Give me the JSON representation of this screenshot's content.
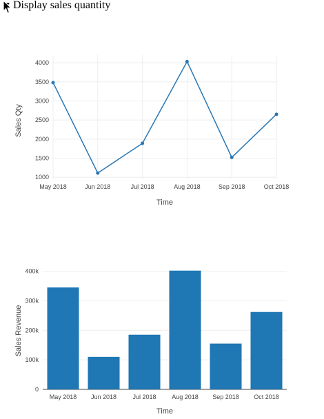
{
  "disclosure": {
    "label": "Display sales quantity"
  },
  "chart_data": [
    {
      "type": "line",
      "categories": [
        "May 2018",
        "Jun 2018",
        "Jul 2018",
        "Aug 2018",
        "Sep 2018",
        "Oct 2018"
      ],
      "values": [
        3480,
        1110,
        1890,
        4030,
        1520,
        2650
      ],
      "xlabel": "Time",
      "ylabel": "Sales Qty",
      "ylim": [
        950,
        4200
      ],
      "yticks": [
        1000,
        1500,
        2000,
        2500,
        3000,
        3500,
        4000
      ],
      "ytick_labels": [
        "1000",
        "1500",
        "2000",
        "2500",
        "3000",
        "3500",
        "4000"
      ],
      "grid": true,
      "color": "#2a77b4"
    },
    {
      "type": "bar",
      "categories": [
        "May 2018",
        "Jun 2018",
        "Jul 2018",
        "Aug 2018",
        "Sep 2018",
        "Oct 2018"
      ],
      "values": [
        345000,
        110000,
        185000,
        402000,
        155000,
        262000
      ],
      "xlabel": "Time",
      "ylabel": "Sales Revenue",
      "ylim": [
        0,
        420000
      ],
      "yticks": [
        0,
        100000,
        200000,
        300000,
        400000
      ],
      "ytick_labels": [
        "0",
        "100k",
        "200k",
        "300k",
        "400k"
      ],
      "grid": true,
      "color": "#1f77b4"
    }
  ]
}
